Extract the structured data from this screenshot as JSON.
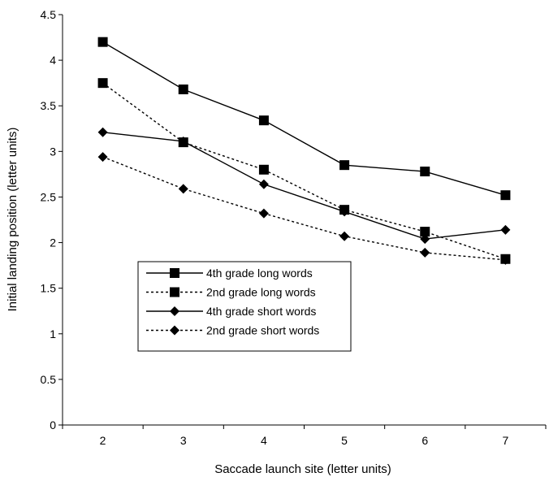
{
  "chart_data": {
    "type": "line",
    "title": "",
    "xlabel": "Saccade launch site (letter units)",
    "ylabel": "Initial landing position (letter units)",
    "x": [
      2,
      3,
      4,
      5,
      6,
      7
    ],
    "x_tick_labels": [
      "2",
      "3",
      "4",
      "5",
      "6",
      "7"
    ],
    "xlim": [
      1.5,
      7.5
    ],
    "ylim": [
      0,
      4.5
    ],
    "y_tick_labels": [
      "0",
      "0.5",
      "1",
      "1.5",
      "2",
      "2.5",
      "3",
      "3.5",
      "4",
      "4.5"
    ],
    "grid": false,
    "legend_position": "lower-left inside",
    "series": [
      {
        "name": "4th grade long words",
        "values": [
          4.2,
          3.68,
          3.34,
          2.85,
          2.78,
          2.52
        ],
        "line_style": "solid",
        "marker": "square",
        "color": "#000000"
      },
      {
        "name": "2nd grade long words",
        "values": [
          3.75,
          3.1,
          2.8,
          2.36,
          2.12,
          1.82
        ],
        "line_style": "dashed",
        "marker": "square",
        "color": "#000000"
      },
      {
        "name": "4th grade short words",
        "values": [
          3.21,
          3.11,
          2.64,
          2.34,
          2.04,
          2.14
        ],
        "line_style": "solid",
        "marker": "diamond",
        "color": "#000000"
      },
      {
        "name": "2nd grade short words",
        "values": [
          2.94,
          2.59,
          2.32,
          2.07,
          1.89,
          1.81
        ],
        "line_style": "dashed",
        "marker": "diamond",
        "color": "#000000"
      }
    ]
  }
}
